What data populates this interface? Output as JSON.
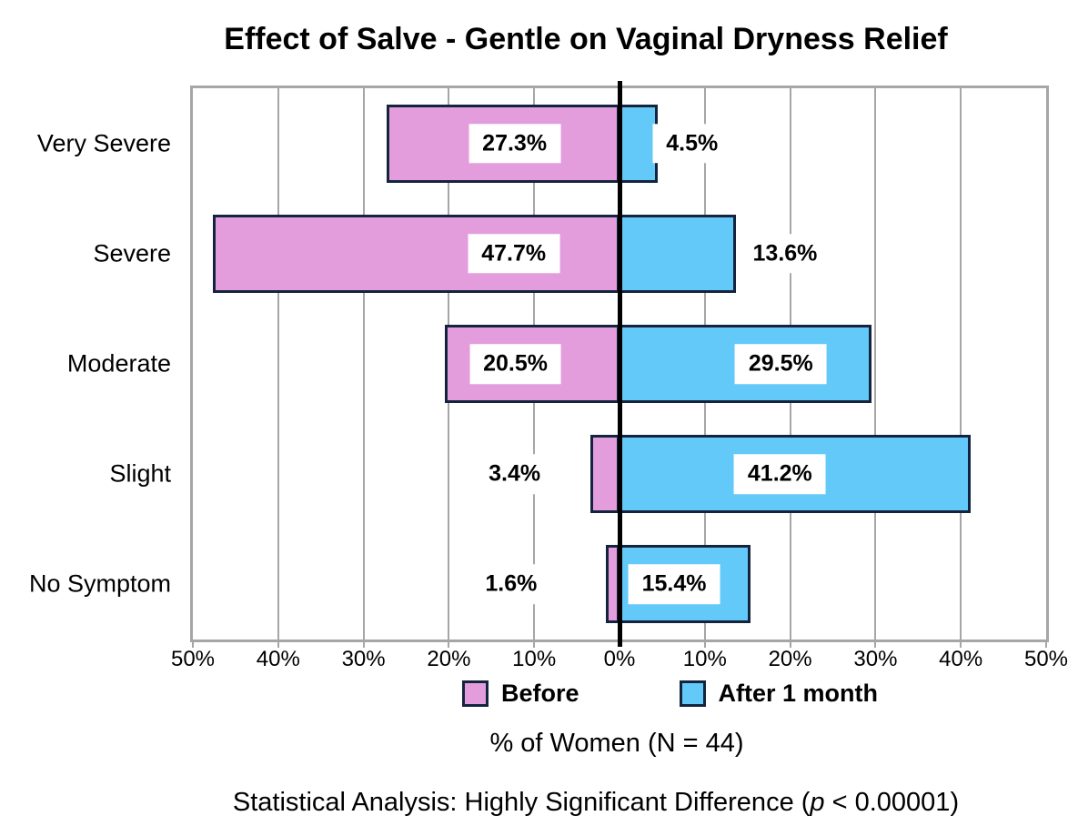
{
  "chart_data": {
    "type": "bar",
    "orientation": "horizontal-diverging",
    "title": "Effect of Salve - Gentle on Vaginal Dryness Relief",
    "categories": [
      "Very Severe",
      "Severe",
      "Moderate",
      "Slight",
      "No Symptom"
    ],
    "series": [
      {
        "name": "Before",
        "side": "left",
        "color": "#E39DDD",
        "values": [
          27.3,
          47.7,
          20.5,
          3.4,
          1.6
        ],
        "labels": [
          "27.3%",
          "47.7%",
          "20.5%",
          "3.4%",
          "1.6%"
        ],
        "label_pos_pct": [
          12.3,
          12.4,
          12.2,
          12.3,
          12.7
        ]
      },
      {
        "name": "After 1 month",
        "side": "right",
        "color": "#63C9F8",
        "values": [
          4.5,
          13.6,
          29.5,
          41.2,
          15.4
        ],
        "labels": [
          "4.5%",
          "13.6%",
          "29.5%",
          "41.2%",
          "15.4%"
        ],
        "label_pos_pct": [
          8.5,
          19.4,
          18.9,
          18.8,
          6.4
        ]
      }
    ],
    "bar_border_color": "#14243E",
    "grid_color": "#A6A6A6",
    "zero_line_color": "#000000",
    "x_ticks": [
      "50%",
      "40%",
      "30%",
      "20%",
      "10%",
      "0%",
      "10%",
      "20%",
      "30%",
      "40%",
      "50%"
    ],
    "x_range": [
      -50,
      50
    ],
    "grid": true,
    "legend_position": "bottom",
    "xlabel": "% of Women (N = 44)"
  },
  "footnote": {
    "prefix": "Statistical Analysis: Highly Significant Difference (",
    "p_symbol": "p",
    "suffix": " < 0.00001)"
  }
}
